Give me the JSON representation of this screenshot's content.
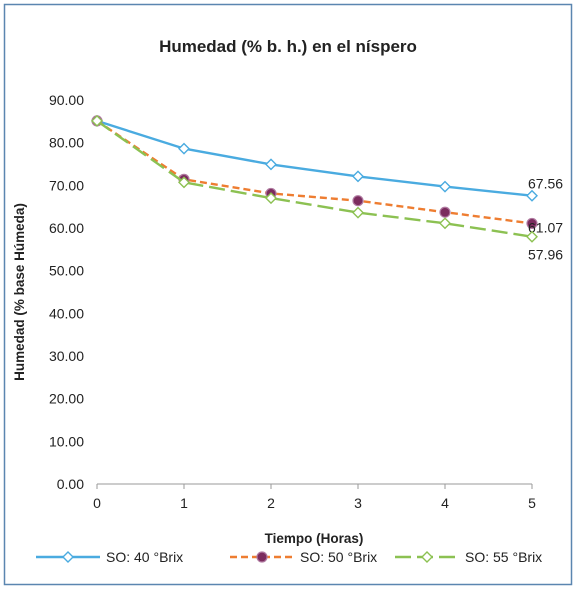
{
  "chart_data": {
    "type": "line",
    "title": "Humedad (% b. h.) en el níspero",
    "xlabel": "Tiempo (Horas)",
    "ylabel": "Humedad (% base Húmeda)",
    "x": [
      0,
      1,
      2,
      3,
      4,
      5
    ],
    "x_tick_labels": [
      "0",
      "1",
      "2",
      "3",
      "4",
      "5"
    ],
    "ylim": [
      0,
      90
    ],
    "y_ticks": [
      0,
      10,
      20,
      30,
      40,
      50,
      60,
      70,
      80,
      90
    ],
    "y_tick_labels": [
      "0.00",
      "10.00",
      "20.00",
      "30.00",
      "40.00",
      "50.00",
      "60.00",
      "70.00",
      "80.00",
      "90.00"
    ],
    "grid": false,
    "legend_position": "bottom",
    "series": [
      {
        "name": "SO: 40 °Brix",
        "values": [
          85.1,
          78.6,
          74.9,
          72.1,
          69.7,
          67.56
        ],
        "end_label": "67.56",
        "color": "#4aabe0",
        "line_style": "solid",
        "marker": "diamond-open"
      },
      {
        "name": "SO: 50 °Brix",
        "values": [
          85.1,
          71.4,
          68.1,
          66.4,
          63.7,
          61.07
        ],
        "end_label": "61.07",
        "color": "#ee7d31",
        "marker_fill": "#7b2c5e",
        "line_style": "dashed",
        "marker": "circle-filled"
      },
      {
        "name": "SO: 55 °Brix",
        "values": [
          85.1,
          70.7,
          67.0,
          63.6,
          61.1,
          57.96
        ],
        "end_label": "57.96",
        "color": "#8cc152",
        "line_style": "longdash",
        "marker": "diamond-open"
      }
    ]
  }
}
